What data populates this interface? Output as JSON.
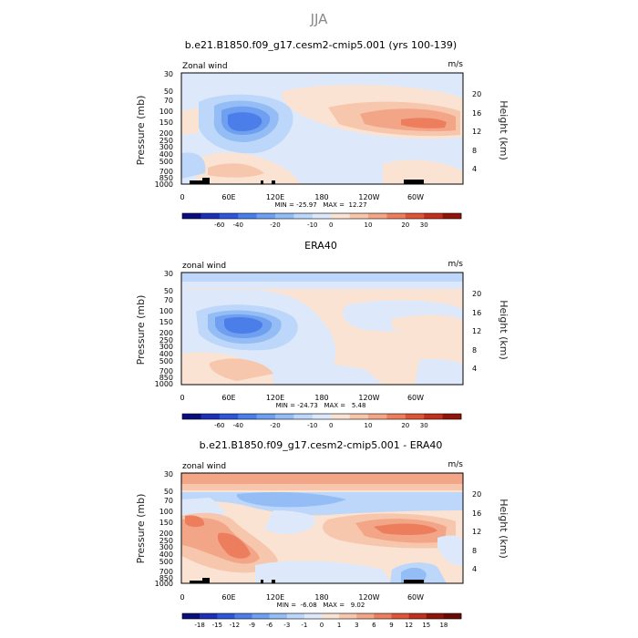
{
  "page_title": "JJA",
  "colors": {
    "frame": "#000000",
    "land": "#000000"
  },
  "chart_data": [
    {
      "type": "heatmap",
      "title": "b.e21.B1850.f09_g17.cesm2-cmip5.001 (yrs 100-139)",
      "corner_left": "Zonal wind",
      "corner_right": "m/s",
      "ylabel": "Pressure (mb)",
      "ylabel_right": "Height (km)",
      "pressure_ticks": [
        "30",
        "50",
        "70",
        "100",
        "150",
        "200",
        "250",
        "300",
        "400",
        "500",
        "700",
        "850",
        "1000"
      ],
      "height_ticks": [
        "20",
        "16",
        "12",
        "8",
        "4"
      ],
      "x_ticks": [
        "0",
        "60E",
        "120E",
        "180",
        "120W",
        "60W"
      ],
      "stats": "MIN = -25.97   MAX =  12.27",
      "colorbar_labels": [
        "-60",
        "-40",
        "-20",
        "-10",
        "0",
        "10",
        "20",
        "30"
      ],
      "colorbar_colors": [
        "#0a0e7a",
        "#1c2fb5",
        "#2f55d8",
        "#4b7ee8",
        "#6e9ff0",
        "#94bdf5",
        "#bcd7fa",
        "#dde9fb",
        "#fbe3d3",
        "#f7c7ad",
        "#f3a587",
        "#ec7e5d",
        "#dc5537",
        "#c0301d",
        "#8f1409"
      ],
      "zmin": -25.97,
      "zmax": 12.27
    },
    {
      "type": "heatmap",
      "title": "ERA40",
      "corner_left": "zonal wind",
      "corner_right": "m/s",
      "ylabel": "Pressure (mb)",
      "ylabel_right": "Height (km)",
      "pressure_ticks": [
        "30",
        "50",
        "70",
        "100",
        "150",
        "200",
        "250",
        "300",
        "400",
        "500",
        "700",
        "850",
        "1000"
      ],
      "height_ticks": [
        "20",
        "16",
        "12",
        "8",
        "4"
      ],
      "x_ticks": [
        "0",
        "60E",
        "120E",
        "180",
        "120W",
        "60W"
      ],
      "stats": "MIN = -24.73   MAX =   5.48",
      "colorbar_labels": [
        "-60",
        "-40",
        "-20",
        "-10",
        "0",
        "10",
        "20",
        "30"
      ],
      "colorbar_colors": [
        "#0a0e7a",
        "#1c2fb5",
        "#2f55d8",
        "#4b7ee8",
        "#6e9ff0",
        "#94bdf5",
        "#bcd7fa",
        "#dde9fb",
        "#fbe3d3",
        "#f7c7ad",
        "#f3a587",
        "#ec7e5d",
        "#dc5537",
        "#c0301d",
        "#8f1409"
      ],
      "zmin": -24.73,
      "zmax": 5.48
    },
    {
      "type": "heatmap",
      "title": "b.e21.B1850.f09_g17.cesm2-cmip5.001 - ERA40",
      "corner_left": "zonal wind",
      "corner_right": "m/s",
      "ylabel": "Pressure (mb)",
      "ylabel_right": "Height (km)",
      "pressure_ticks": [
        "30",
        "50",
        "70",
        "100",
        "150",
        "200",
        "250",
        "300",
        "400",
        "500",
        "700",
        "850",
        "1000"
      ],
      "height_ticks": [
        "20",
        "16",
        "12",
        "8",
        "4"
      ],
      "x_ticks": [
        "0",
        "60E",
        "120E",
        "180",
        "120W",
        "60W"
      ],
      "stats": "MIN =  -6.08   MAX =   9.02",
      "colorbar_labels": [
        "-18",
        "-15",
        "-12",
        "-9",
        "-6",
        "-3",
        "-1",
        "0",
        "1",
        "3",
        "6",
        "9",
        "12",
        "15",
        "18"
      ],
      "colorbar_colors": [
        "#0a0e7a",
        "#1c2fb5",
        "#2f55d8",
        "#4b7ee8",
        "#6e9ff0",
        "#94bdf5",
        "#bcd7fa",
        "#dde9fb",
        "#fbe3d3",
        "#f7c7ad",
        "#f3a587",
        "#ec7e5d",
        "#dc5537",
        "#c0301d",
        "#8f1409",
        "#6a0a05"
      ],
      "zmin": -6.08,
      "zmax": 9.02
    }
  ]
}
